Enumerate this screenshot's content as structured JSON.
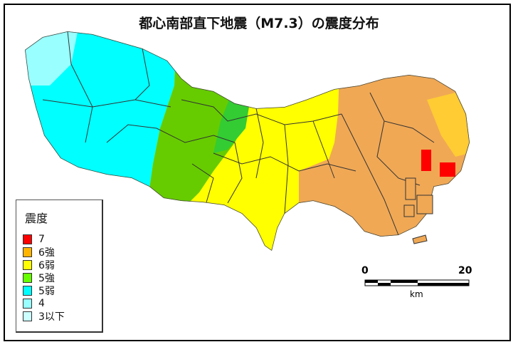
{
  "title": "都心南部直下地震（M7.3）の震度分布",
  "legend": {
    "title": "震度",
    "items": [
      {
        "label": "7",
        "color": "#ff0000"
      },
      {
        "label": "6強",
        "color": "#ffb400"
      },
      {
        "label": "6弱",
        "color": "#ffff00"
      },
      {
        "label": "5強",
        "color": "#66ff00"
      },
      {
        "label": "5弱",
        "color": "#00ffff"
      },
      {
        "label": "4",
        "color": "#99ffff"
      },
      {
        "label": "3以下",
        "color": "#ccffff"
      }
    ]
  },
  "scale_bar": {
    "start": "0",
    "end": "20",
    "unit": "km"
  }
}
